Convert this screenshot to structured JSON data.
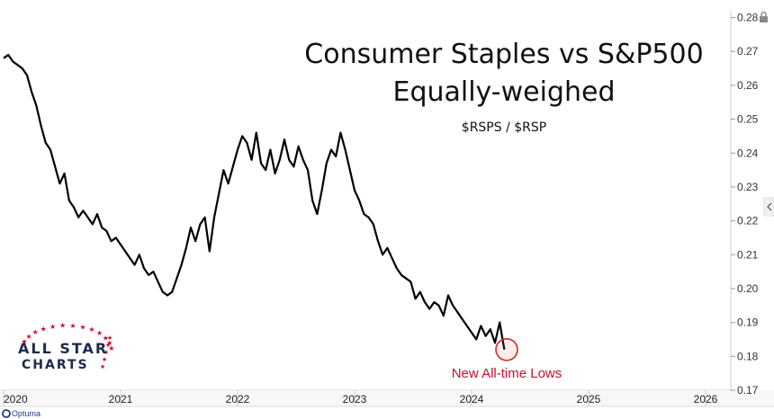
{
  "chart_data": {
    "type": "line",
    "title": "Consumer Staples vs S&P500",
    "subtitle": "Equally-weighed",
    "symbol": "$RSPS / $RSP",
    "xlabel": "",
    "ylabel": "",
    "ylim": [
      0.17,
      0.282
    ],
    "y_ticks": [
      "0.28",
      "0.27",
      "0.26",
      "0.25",
      "0.24",
      "0.23",
      "0.22",
      "0.21",
      "0.20",
      "0.19",
      "0.18",
      "0.17"
    ],
    "x_ticks": [
      "2020",
      "2021",
      "2022",
      "2023",
      "2024",
      "2025",
      "2026"
    ],
    "grid": false,
    "annotation": {
      "text": "New All-time Lows",
      "color": "#c8102e",
      "x": 2024.3,
      "y": 0.182
    },
    "series": [
      {
        "color": "#000000",
        "x": [
          2020.0,
          2020.04,
          2020.08,
          2020.12,
          2020.16,
          2020.2,
          2020.24,
          2020.28,
          2020.32,
          2020.36,
          2020.4,
          2020.44,
          2020.48,
          2020.52,
          2020.56,
          2020.6,
          2020.64,
          2020.68,
          2020.72,
          2020.76,
          2020.8,
          2020.84,
          2020.88,
          2020.92,
          2020.96,
          2021.0,
          2021.04,
          2021.08,
          2021.12,
          2021.16,
          2021.2,
          2021.24,
          2021.28,
          2021.32,
          2021.36,
          2021.4,
          2021.44,
          2021.48,
          2021.52,
          2021.56,
          2021.6,
          2021.64,
          2021.68,
          2021.72,
          2021.76,
          2021.8,
          2021.84,
          2021.88,
          2021.92,
          2021.96,
          2022.0,
          2022.04,
          2022.08,
          2022.12,
          2022.16,
          2022.2,
          2022.24,
          2022.28,
          2022.32,
          2022.36,
          2022.4,
          2022.44,
          2022.48,
          2022.52,
          2022.56,
          2022.6,
          2022.64,
          2022.68,
          2022.72,
          2022.76,
          2022.8,
          2022.84,
          2022.88,
          2022.92,
          2022.96,
          2023.0,
          2023.04,
          2023.08,
          2023.12,
          2023.16,
          2023.2,
          2023.24,
          2023.28,
          2023.32,
          2023.36,
          2023.4,
          2023.44,
          2023.48,
          2023.52,
          2023.56,
          2023.6,
          2023.64,
          2023.68,
          2023.72,
          2023.76,
          2023.8,
          2023.84,
          2023.88,
          2023.92,
          2023.96,
          2024.0,
          2024.04,
          2024.08,
          2024.12,
          2024.16,
          2024.2,
          2024.24,
          2024.28
        ],
        "y": [
          0.268,
          0.269,
          0.267,
          0.266,
          0.265,
          0.263,
          0.258,
          0.254,
          0.248,
          0.243,
          0.241,
          0.236,
          0.231,
          0.234,
          0.226,
          0.224,
          0.221,
          0.223,
          0.221,
          0.219,
          0.222,
          0.218,
          0.217,
          0.214,
          0.215,
          0.213,
          0.211,
          0.209,
          0.207,
          0.21,
          0.206,
          0.204,
          0.205,
          0.202,
          0.199,
          0.198,
          0.199,
          0.203,
          0.207,
          0.212,
          0.218,
          0.214,
          0.219,
          0.221,
          0.211,
          0.221,
          0.228,
          0.235,
          0.231,
          0.236,
          0.241,
          0.245,
          0.243,
          0.238,
          0.246,
          0.237,
          0.235,
          0.241,
          0.234,
          0.238,
          0.244,
          0.238,
          0.236,
          0.242,
          0.238,
          0.235,
          0.226,
          0.222,
          0.229,
          0.237,
          0.241,
          0.239,
          0.246,
          0.241,
          0.235,
          0.229,
          0.226,
          0.222,
          0.221,
          0.219,
          0.214,
          0.21,
          0.212,
          0.209,
          0.206,
          0.204,
          0.203,
          0.202,
          0.197,
          0.199,
          0.196,
          0.194,
          0.196,
          0.195,
          0.192,
          0.198,
          0.195,
          0.193,
          0.191,
          0.189,
          0.187,
          0.185,
          0.189,
          0.186,
          0.188,
          0.184,
          0.19,
          0.182
        ]
      }
    ]
  },
  "branding": {
    "logo_line1": "ALL STAR",
    "logo_line2": "CHARTS",
    "optuma": "Optuma"
  },
  "colors": {
    "line": "#000000",
    "annotation": "#c8102e",
    "axis": "#cccccc",
    "logo": "#1e2a4a"
  }
}
